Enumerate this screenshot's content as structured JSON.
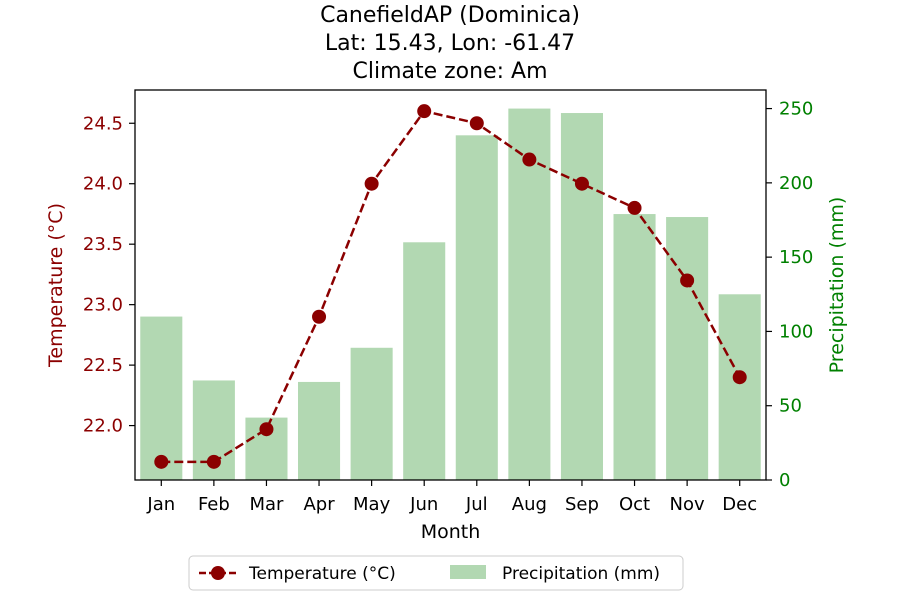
{
  "chart_data": {
    "type": "bar+line",
    "title_lines": [
      "CanefieldAP (Dominica)",
      "Lat: 15.43, Lon: -61.47",
      "Climate zone: Am"
    ],
    "xlabel": "Month",
    "ylabel_left": "Temperature (°C)",
    "ylabel_right": "Precipitation (mm)",
    "categories": [
      "Jan",
      "Feb",
      "Mar",
      "Apr",
      "May",
      "Jun",
      "Jul",
      "Aug",
      "Sep",
      "Oct",
      "Nov",
      "Dec"
    ],
    "series": [
      {
        "name": "Temperature (°C)",
        "axis": "left",
        "style": "dashed line with circle markers",
        "color": "#8b0000",
        "values": [
          21.7,
          21.7,
          21.97,
          22.9,
          24.0,
          24.6,
          24.5,
          24.2,
          24.0,
          23.8,
          23.2,
          22.4
        ]
      },
      {
        "name": "Precipitation (mm)",
        "axis": "right",
        "style": "bar",
        "color": "#b2d8b2",
        "values": [
          110,
          67,
          42,
          66,
          89,
          160,
          232,
          250,
          247,
          179,
          177,
          125
        ]
      }
    ],
    "ylim_left": [
      21.55,
      24.775
    ],
    "yticks_left": [
      "22.0",
      "22.5",
      "23.0",
      "23.5",
      "24.0",
      "24.5"
    ],
    "ylim_right": [
      0,
      262.5
    ],
    "yticks_right": [
      "0",
      "50",
      "100",
      "150",
      "200",
      "250"
    ],
    "left_axis_color": "#8b0000",
    "right_axis_color": "#008000",
    "legend_position": "bottom-center, below axes",
    "grid": false
  }
}
